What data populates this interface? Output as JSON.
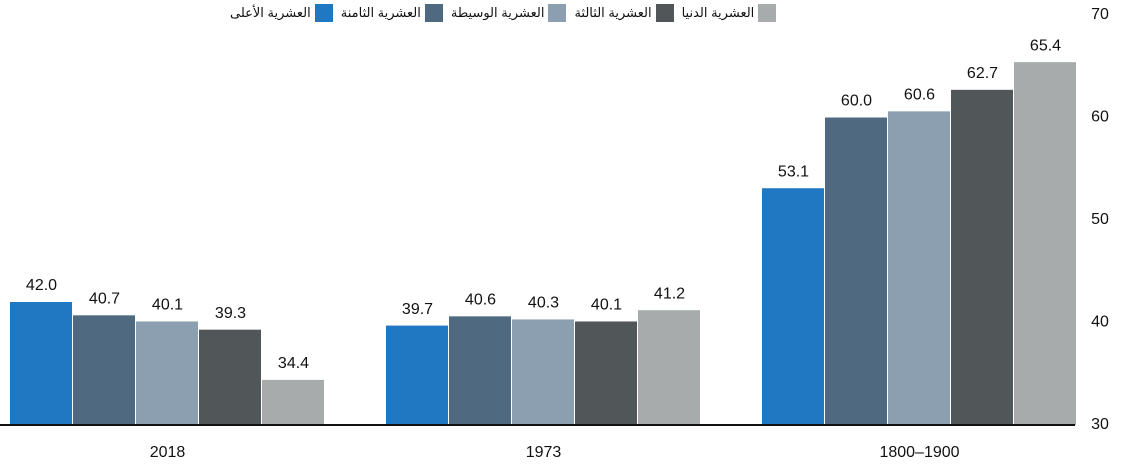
{
  "chart_data": {
    "type": "bar",
    "categories": [
      "2018",
      "1973",
      "1800–1900"
    ],
    "series": [
      {
        "name": "العشرية الأعلى",
        "color": "#1f78c1",
        "values": [
          42.0,
          39.7,
          53.1
        ],
        "value_labels": [
          "42.0",
          "39.7",
          "53.1"
        ]
      },
      {
        "name": "العشرية الثامنة",
        "color": "#4f6a80",
        "values": [
          40.7,
          40.6,
          60.0
        ],
        "value_labels": [
          "40.7",
          "40.6",
          "60.0"
        ]
      },
      {
        "name": "العشرية الوسيطة",
        "color": "#8c9fb0",
        "values": [
          40.1,
          40.3,
          60.6
        ],
        "value_labels": [
          "40.1",
          "40.3",
          "60.6"
        ]
      },
      {
        "name": "العشرية الثالثة",
        "color": "#515658",
        "values": [
          39.3,
          40.1,
          62.7
        ],
        "value_labels": [
          "39.3",
          "40.1",
          "62.7"
        ]
      },
      {
        "name": "العشرية الدنيا",
        "color": "#a8abab",
        "values": [
          34.4,
          41.2,
          65.4
        ],
        "value_labels": [
          "34.4",
          "41.2",
          "65.4"
        ]
      }
    ],
    "ylim": [
      30,
      70
    ],
    "yticks": [
      30,
      40,
      50,
      60,
      70
    ],
    "grid": false,
    "legend": "top"
  }
}
